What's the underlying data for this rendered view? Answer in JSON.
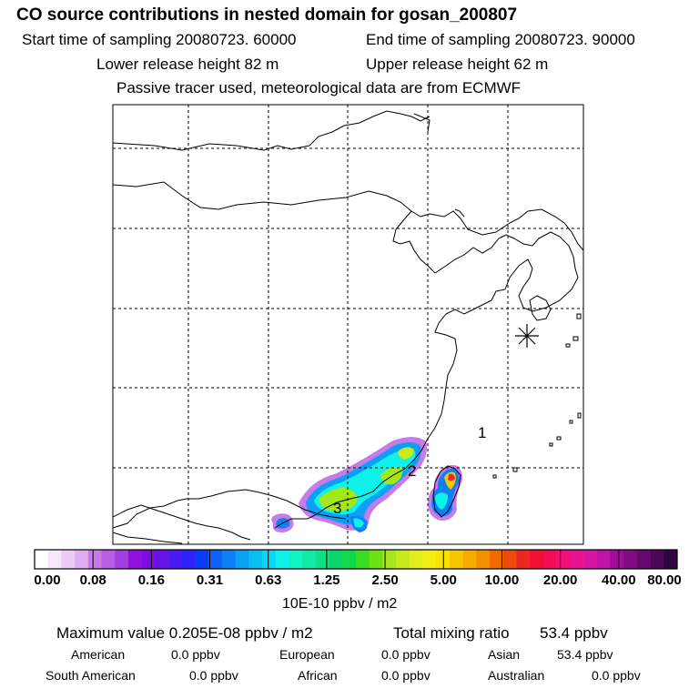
{
  "header": {
    "title": "CO  source contributions in nested domain for gosan_200807",
    "start_time": "Start time of sampling 20080723. 60000",
    "end_time": "End time of sampling 20080723. 90000",
    "lower_height": "Lower release height   82 m",
    "upper_height": "Upper release height   62 m",
    "tracer_note": "Passive tracer used, meteorological data are from ECMWF"
  },
  "map": {
    "source_labels": [
      "1",
      "2",
      "3"
    ],
    "receptor_marker": "asterisk-icon"
  },
  "colorbar": {
    "ticks": [
      "0.00",
      "0.08",
      "0.16",
      "0.31",
      "0.63",
      "1.25",
      "2.50",
      "5.00",
      "10.00",
      "20.00",
      "40.00",
      "80.00"
    ],
    "units": "10E-10 ppbv / m2",
    "colors": [
      "#ffffff",
      "#f6e6fb",
      "#eccbf5",
      "#dfaef0",
      "#c77be9",
      "#b65ee4",
      "#a43edf",
      "#9210dd",
      "#7f0de2",
      "#6713e8",
      "#4b19f2",
      "#2d23f6",
      "#0b3cf5",
      "#0c62f7",
      "#0d80f7",
      "#0d9ef6",
      "#09bdf3",
      "#08d9f0",
      "#0ff2ec",
      "#13f2c5",
      "#12e9a4",
      "#0fe187",
      "#0cd36a",
      "#11d94c",
      "#3adc1f",
      "#6ee112",
      "#a3e61a",
      "#c6ea1e",
      "#e1ed1c",
      "#f4ee12",
      "#f7e400",
      "#f6c700",
      "#f6ad00",
      "#f38e00",
      "#f16a00",
      "#ee4a10",
      "#ec2722",
      "#f00f37",
      "#f20b55",
      "#f11075",
      "#e81391",
      "#d516a3",
      "#bf12a6",
      "#a00d97",
      "#820a84",
      "#650a6c",
      "#4c0856",
      "#2f0540"
    ]
  },
  "chart_data": {
    "type": "heatmap",
    "title": "CO  source contributions in nested domain for gosan_200807",
    "scale_levels": [
      0.0,
      0.08,
      0.16,
      0.31,
      0.63,
      1.25,
      2.5,
      5.0,
      10.0,
      20.0,
      40.0,
      80.0
    ],
    "units": "10E-10 ppbv / m2",
    "maximum_value": "0.205E-08 ppbv / m2",
    "total_mixing_ratio": "53.4 ppbv",
    "region_labels": [
      "1",
      "2",
      "3"
    ]
  },
  "summary": {
    "max_label": "Maximum value",
    "max_value": "0.205E-08 ppbv / m2",
    "total_label": "Total mixing ratio",
    "total_value": "53.4 ppbv",
    "regions": [
      {
        "name": "American",
        "value": "0.0 ppbv"
      },
      {
        "name": "European",
        "value": "0.0 ppbv"
      },
      {
        "name": "Asian",
        "value": "53.4 ppbv"
      },
      {
        "name": "South American",
        "value": "0.0 ppbv"
      },
      {
        "name": "African",
        "value": "0.0 ppbv"
      },
      {
        "name": "Australian",
        "value": "0.0 ppbv"
      }
    ]
  }
}
